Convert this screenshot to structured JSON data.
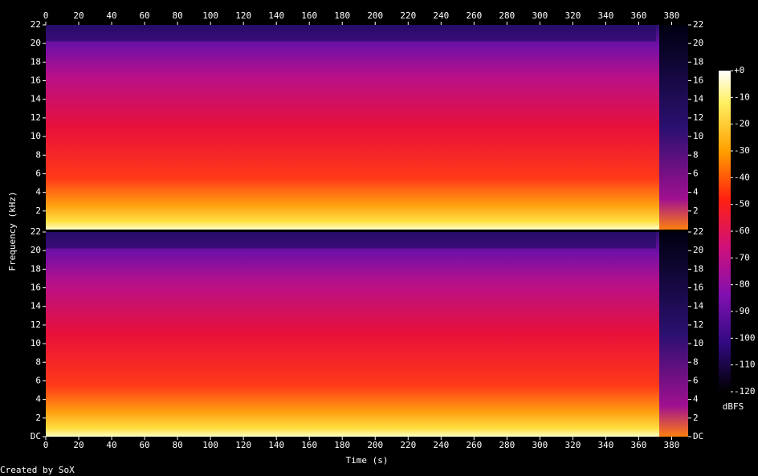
{
  "chart_data": {
    "type": "spectrogram",
    "xlabel": "Time (s)",
    "ylabel": "Frequency (kHz)",
    "xlim": [
      0,
      390
    ],
    "xticks": [
      0,
      20,
      40,
      60,
      80,
      100,
      120,
      140,
      160,
      180,
      200,
      220,
      240,
      260,
      280,
      300,
      320,
      340,
      360,
      380
    ],
    "ylim": [
      0,
      22
    ],
    "panels": [
      {
        "yticks": [
          2,
          4,
          6,
          8,
          10,
          12,
          14,
          16,
          18,
          20,
          22
        ]
      },
      {
        "yticks": [
          {
            "value": 0,
            "label": "DC"
          },
          2,
          4,
          6,
          8,
          10,
          12,
          14,
          16,
          18,
          20,
          22
        ]
      }
    ],
    "colorbar": {
      "label": "dBFS",
      "lim": [
        -120,
        0
      ],
      "ticks": [
        {
          "value": 0,
          "label": "+0"
        },
        -10,
        -20,
        -30,
        -40,
        -50,
        -60,
        -70,
        -80,
        -90,
        -100,
        -110,
        -120
      ]
    },
    "footer": "Created by SoX"
  }
}
